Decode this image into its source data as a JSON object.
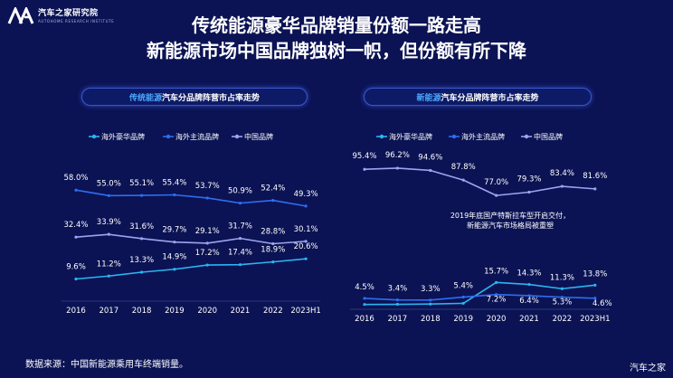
{
  "logo": {
    "name": "汽车之家研究院",
    "subtitle": "AUTOHOME RESEARCH INSTITUTE"
  },
  "title": {
    "line1": "传统能源豪华品牌销量份额一路走高",
    "line2": "新能源市场中国品牌独树一帜，但份额有所下降"
  },
  "footer": {
    "source": "数据来源：中国新能源乘用车终端销量。"
  },
  "watermark": "汽车之家",
  "colors": {
    "background": "#0b1354",
    "lux": "#2bb5f0",
    "mainstream": "#2f6df0",
    "chinese": "#9fa3f0"
  },
  "chart_data": [
    {
      "type": "line",
      "title_highlight": "传统能源",
      "title_rest": "汽车分品牌阵营市占率走势",
      "categories": [
        "2016",
        "2017",
        "2018",
        "2019",
        "2020",
        "2021",
        "2022",
        "2023H1"
      ],
      "unit": "%",
      "legend_position": "top",
      "grid": false,
      "ylim": [
        0,
        65
      ],
      "series": [
        {
          "name": "海外豪华品牌",
          "color": "#2bb5f0",
          "values": [
            9.6,
            11.2,
            13.3,
            14.9,
            17.2,
            17.4,
            18.9,
            20.6
          ],
          "labels": [
            "9.6%",
            "11.2%",
            "13.3%",
            "14.9%",
            "17.2%",
            "17.4%",
            "18.9%",
            "20.6%"
          ]
        },
        {
          "name": "海外主流品牌",
          "color": "#2f6df0",
          "values": [
            58.0,
            55.0,
            55.1,
            55.4,
            53.7,
            50.9,
            52.4,
            49.3
          ],
          "labels": [
            "58.0%",
            "55.0%",
            "55.1%",
            "55.4%",
            "53.7%",
            "50.9%",
            "52.4%",
            "49.3%"
          ]
        },
        {
          "name": "中国品牌",
          "color": "#9fa3f0",
          "values": [
            32.4,
            33.9,
            31.6,
            29.7,
            29.1,
            31.7,
            28.8,
            30.1
          ],
          "labels": [
            "32.4%",
            "33.9%",
            "31.6%",
            "29.7%",
            "29.1%",
            "31.7%",
            "28.8%",
            "30.1%"
          ]
        }
      ]
    },
    {
      "type": "line",
      "title_highlight": "新能源",
      "title_rest": "汽车分品牌阵营市占率走势",
      "categories": [
        "2016",
        "2017",
        "2018",
        "2019",
        "2020",
        "2021",
        "2022",
        "2023H1"
      ],
      "unit": "%",
      "legend_position": "top",
      "grid": false,
      "ylim": [
        0,
        100
      ],
      "annotation": [
        "2019年底国产特斯拉车型开启交付，",
        "新能源汽车市场格局被重塑"
      ],
      "series": [
        {
          "name": "海外豪华品牌",
          "color": "#2bb5f0",
          "values": [
            0.2,
            0.3,
            0.5,
            1.0,
            15.7,
            14.3,
            11.3,
            13.8
          ],
          "labels": [
            "",
            "",
            "",
            "",
            "15.7%",
            "14.3%",
            "11.3%",
            "13.8%"
          ]
        },
        {
          "name": "海外主流品牌",
          "color": "#2f6df0",
          "values": [
            4.5,
            3.4,
            3.3,
            5.4,
            7.2,
            6.4,
            5.3,
            4.6
          ],
          "labels": [
            "4.5%",
            "3.4%",
            "3.3%",
            "5.4%",
            "7.2%",
            "6.4%",
            "5.3%",
            "4.6%"
          ]
        },
        {
          "name": "中国品牌",
          "color": "#9fa3f0",
          "values": [
            95.4,
            96.2,
            94.6,
            87.8,
            77.0,
            79.3,
            83.4,
            81.6
          ],
          "labels": [
            "95.4%",
            "96.2%",
            "94.6%",
            "87.8%",
            "77.0%",
            "79.3%",
            "83.4%",
            "81.6%"
          ]
        }
      ]
    }
  ]
}
